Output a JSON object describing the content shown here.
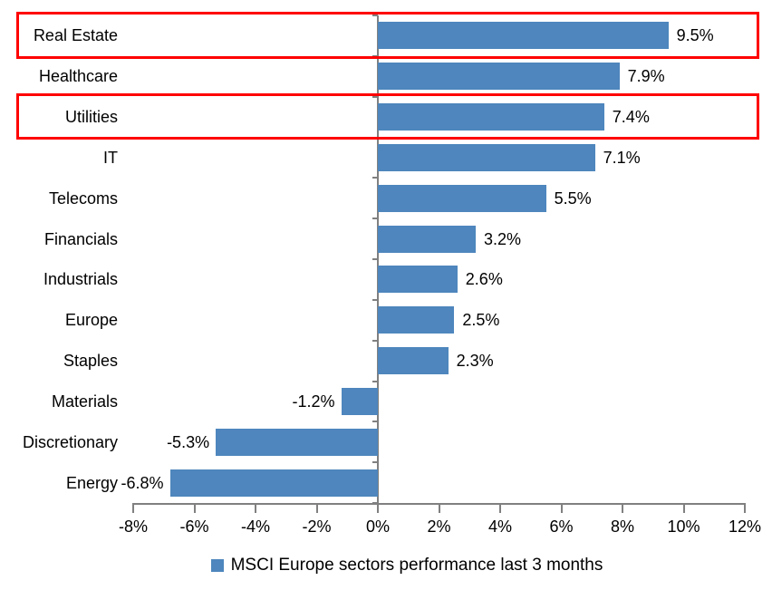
{
  "chart_data": {
    "type": "bar",
    "orientation": "horizontal",
    "categories": [
      "Real Estate",
      "Healthcare",
      "Utilities",
      "IT",
      "Telecoms",
      "Financials",
      "Industrials",
      "Europe",
      "Staples",
      "Materials",
      "Discretionary",
      "Energy"
    ],
    "values": [
      9.5,
      7.9,
      7.4,
      7.1,
      5.5,
      3.2,
      2.6,
      2.5,
      2.3,
      -1.2,
      -5.3,
      -6.8
    ],
    "value_labels": [
      "9.5%",
      "7.9%",
      "7.4%",
      "7.1%",
      "5.5%",
      "3.2%",
      "2.6%",
      "2.5%",
      "2.3%",
      "-1.2%",
      "-5.3%",
      "-6.8%"
    ],
    "xlim": [
      -8,
      12
    ],
    "x_ticks": [
      -8,
      -6,
      -4,
      -2,
      0,
      2,
      4,
      6,
      8,
      10,
      12
    ],
    "x_tick_labels": [
      "-8%",
      "-6%",
      "-4%",
      "-2%",
      "0%",
      "2%",
      "4%",
      "6%",
      "8%",
      "10%",
      "12%"
    ],
    "grid": false,
    "legend": {
      "position": "bottom",
      "label": "MSCI Europe sectors performance last 3 months"
    },
    "highlighted_categories": [
      "Real Estate",
      "Utilities"
    ],
    "colors": {
      "bar": "#4E86BD",
      "highlight_box": "#FF0000",
      "axis": "#808080",
      "text": "#000000",
      "background": "#FFFFFF"
    }
  }
}
